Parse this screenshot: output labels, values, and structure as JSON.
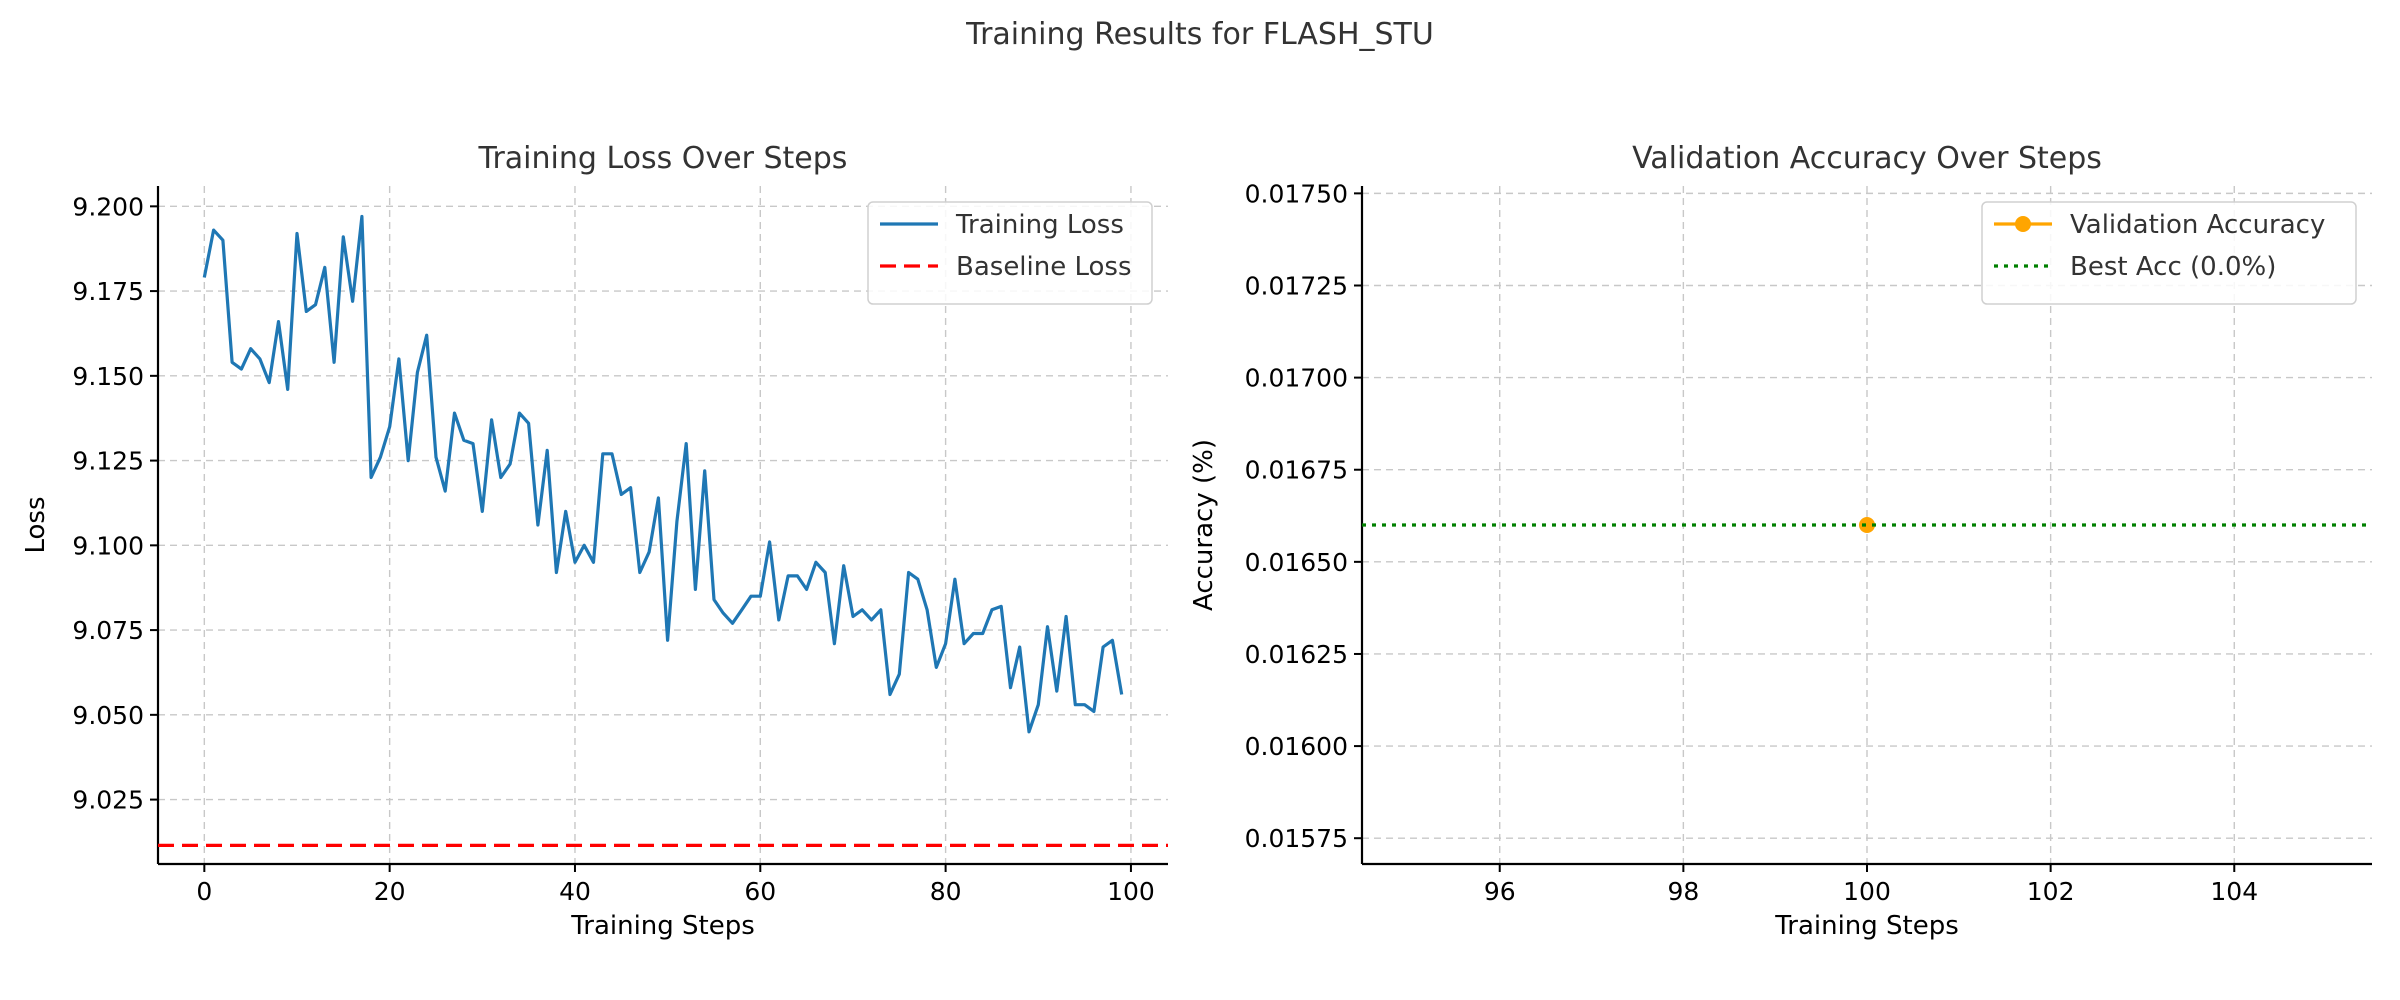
{
  "figure": {
    "suptitle": "Training Results for FLASH_STU"
  },
  "chart_data": [
    {
      "type": "line",
      "title": "Training Loss Over Steps",
      "xlabel": "Training Steps",
      "ylabel": "Loss",
      "xlim": [
        -5,
        104
      ],
      "ylim": [
        9.006,
        9.206
      ],
      "xticks": [
        0,
        20,
        40,
        60,
        80,
        100
      ],
      "yticks": [
        9.025,
        9.05,
        9.075,
        9.1,
        9.125,
        9.15,
        9.175,
        9.2
      ],
      "ytick_labels": [
        "9.025",
        "9.050",
        "9.075",
        "9.100",
        "9.125",
        "9.150",
        "9.175",
        "9.200"
      ],
      "grid": true,
      "legend_position": "upper right",
      "series": [
        {
          "name": "Training Loss",
          "style": "solid",
          "color": "#1f77b4",
          "x": [
            0,
            1,
            2,
            3,
            4,
            5,
            6,
            7,
            8,
            9,
            10,
            11,
            12,
            13,
            14,
            15,
            16,
            17,
            18,
            19,
            20,
            21,
            22,
            23,
            24,
            25,
            26,
            27,
            28,
            29,
            30,
            31,
            32,
            33,
            34,
            35,
            36,
            37,
            38,
            39,
            40,
            41,
            42,
            43,
            44,
            45,
            46,
            47,
            48,
            49,
            50,
            51,
            52,
            53,
            54,
            55,
            56,
            57,
            58,
            59,
            60,
            61,
            62,
            63,
            64,
            65,
            66,
            67,
            68,
            69,
            70,
            71,
            72,
            73,
            74,
            75,
            76,
            77,
            78,
            79,
            80,
            81,
            82,
            83,
            84,
            85,
            86,
            87,
            88,
            89,
            90,
            91,
            92,
            93,
            94,
            95,
            96,
            97,
            98,
            99
          ],
          "values": [
            9.179,
            9.193,
            9.19,
            9.154,
            9.152,
            9.158,
            9.155,
            9.148,
            9.166,
            9.146,
            9.192,
            9.169,
            9.171,
            9.182,
            9.154,
            9.191,
            9.172,
            9.197,
            9.12,
            9.126,
            9.135,
            9.155,
            9.125,
            9.151,
            9.162,
            9.126,
            9.116,
            9.139,
            9.131,
            9.13,
            9.11,
            9.137,
            9.12,
            9.124,
            9.139,
            9.136,
            9.106,
            9.128,
            9.092,
            9.11,
            9.095,
            9.1,
            9.095,
            9.127,
            9.127,
            9.115,
            9.117,
            9.092,
            9.098,
            9.114,
            9.072,
            9.107,
            9.13,
            9.087,
            9.122,
            9.084,
            9.08,
            9.077,
            9.081,
            9.085,
            9.085,
            9.101,
            9.078,
            9.091,
            9.091,
            9.087,
            9.095,
            9.092,
            9.071,
            9.094,
            9.079,
            9.081,
            9.078,
            9.081,
            9.056,
            9.062,
            9.092,
            9.09,
            9.081,
            9.064,
            9.071,
            9.09,
            9.071,
            9.074,
            9.074,
            9.081,
            9.082,
            9.058,
            9.07,
            9.045,
            9.053,
            9.076,
            9.057,
            9.079,
            9.053,
            9.053,
            9.051,
            9.07,
            9.072,
            9.056
          ]
        },
        {
          "name": "Baseline Loss",
          "style": "dashed",
          "color": "#ff0000",
          "y": 9.0115
        }
      ]
    },
    {
      "type": "line",
      "title": "Validation Accuracy Over Steps",
      "xlabel": "Training Steps",
      "ylabel": "Accuracy (%)",
      "xlim": [
        94.5,
        105.5
      ],
      "ylim": [
        0.01568,
        0.01752
      ],
      "xticks": [
        96,
        98,
        100,
        102,
        104
      ],
      "yticks": [
        0.01575,
        0.016,
        0.01625,
        0.0165,
        0.01675,
        0.017,
        0.01725,
        0.0175
      ],
      "ytick_labels": [
        "0.01575",
        "0.01600",
        "0.01625",
        "0.01650",
        "0.01675",
        "0.01700",
        "0.01725",
        "0.01750"
      ],
      "grid": true,
      "legend_position": "upper right",
      "series": [
        {
          "name": "Validation Accuracy",
          "style": "solid-marker",
          "color": "#ffa500",
          "x": [
            100
          ],
          "values": [
            0.0166
          ]
        },
        {
          "name": "Best Acc (0.0%)",
          "style": "dotted",
          "color": "#008000",
          "y": 0.0166
        }
      ]
    }
  ]
}
